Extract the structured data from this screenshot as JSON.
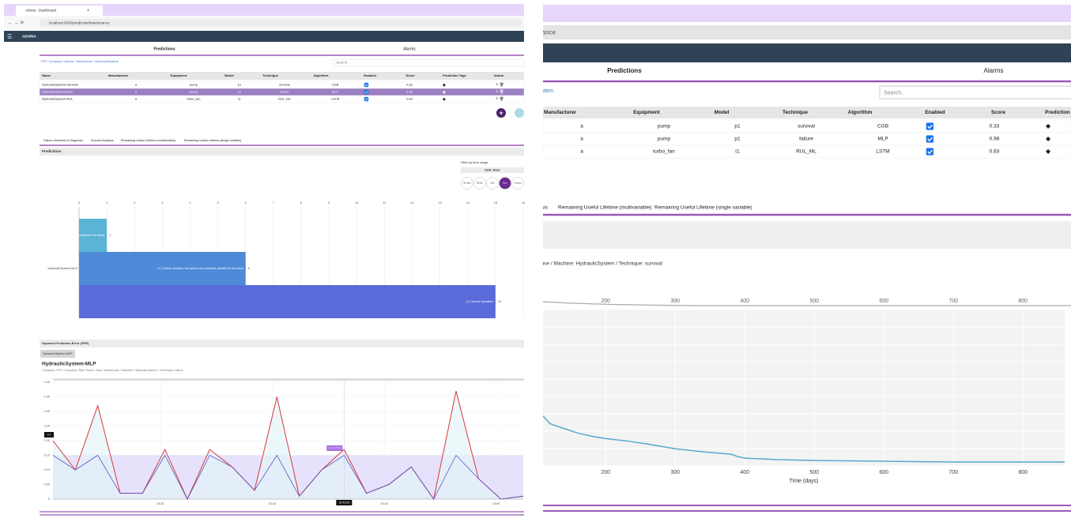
{
  "browser": {
    "tab_title": "Adoria - Dashboard",
    "url": "localhost:3000/predictive/Maintenance"
  },
  "app": {
    "brand": "ADORIA",
    "nav": [
      "Predictions",
      "Alarms"
    ],
    "breadcrumb": "PPC Company / Adoria / Warehouse / HydraulicSystem",
    "search_placeholder": "Search.."
  },
  "table": {
    "columns": [
      "Name",
      "Manufacturer",
      "Equipment",
      "Model",
      "Technique",
      "Algorithm",
      "Enabled",
      "Score",
      "Prediction Tags",
      "Action"
    ],
    "rows": [
      [
        "HydraulicSystem-Survival",
        "a",
        "pump",
        "p1",
        "survival",
        "CGB",
        true,
        "0.33"
      ],
      [
        "HydraulicSystem-MLP",
        "a",
        "pump",
        "p1",
        "failure",
        "MLP",
        true,
        "0.98"
      ],
      [
        "HydraulicSystem-RUL",
        "a",
        "turbo_fan",
        "t1",
        "RUL_ML",
        "LSTM",
        true,
        "0.63"
      ]
    ]
  },
  "subtabs": [
    "Failure Detection & Diagnosis",
    "Survival Analysis",
    "Remaining Useful Lifetime (multivariable)",
    "Remaining Useful Lifetime (single variable)"
  ],
  "predictions_panel": {
    "title": "Predictions",
    "filter_label": "Filter by time range:",
    "unit": "Unit: Hour",
    "ranges": [
      "30 days",
      "Month",
      "Day",
      "Hour",
      "Custom"
    ]
  },
  "spe_panel": {
    "title": "Squared Prediction Error (SPE)",
    "tab": "HydraulicSystem-MLP"
  },
  "chart_data": [
    {
      "type": "bar",
      "orientation": "horizontal",
      "categories": [
        "HydraulicSystem-MLP"
      ],
      "series": [
        {
          "name": "Healthy for the whole",
          "color": "#5ab4d6",
          "values": [
            1
          ]
        },
        {
          "name": "[ 1 ] Failure detected, the input to the predicted variable for the result",
          "color": "#4f8ad8",
          "values": [
            6
          ]
        },
        {
          "name": "[ 0 ] Normal operation",
          "color": "#5b6bd9",
          "values": [
            15
          ]
        }
      ],
      "xlim": [
        0,
        16
      ],
      "xticks": [
        0,
        1,
        2,
        3,
        4,
        5,
        6,
        7,
        8,
        9,
        10,
        11,
        12,
        13,
        14,
        15,
        16
      ],
      "grid": true
    },
    {
      "type": "line",
      "title": "HydraulicSystem-MLP",
      "subtitle": "Company: PPC Company / Site: Route / Area: Warehouse / Machine: HydraulicSystem / Technique: failure",
      "categories": [
        null,
        null,
        null,
        null,
        null,
        "15:35",
        null,
        null,
        null,
        null,
        "15:40",
        null,
        null,
        null,
        null,
        "15:45",
        null,
        null,
        null,
        null,
        "15:50",
        null
      ],
      "values": [
        0.2,
        0.1,
        0.32,
        0.02,
        0.02,
        0.17,
        0.0,
        0.17,
        0.11,
        0.03,
        0.35,
        0.01,
        0.1,
        0.17,
        0.02,
        0.05,
        0.11,
        0.0,
        0.37,
        0.07,
        0.0,
        0.01
      ],
      "color": "#d9383a",
      "threshold": 0.15,
      "threshold_color": "#e6e2fb",
      "below_color": "#5a55c8",
      "ylim": [
        0,
        0.4
      ],
      "yticks": [
        0,
        0.05,
        {
          "value": 0.1,
          "label": "0.10"
        },
        0.15,
        {
          "value": 0.2,
          "label": "0.20"
        },
        0.25,
        {
          "value": 0.3,
          "label": "0.30"
        },
        0.35,
        {
          "value": 0.4,
          "label": "0.40"
        }
      ],
      "grid": true,
      "cursor": {
        "x_label": "15:43:53",
        "value_label": "0.171718",
        "y_label": "0.2"
      }
    },
    {
      "type": "line",
      "subtitle": "Company: PPC Company / Site: Route / Area: Warehouse / Machine: HydraulicSystem / Technique: survival",
      "x": [
        110,
        120,
        140,
        160,
        180,
        200,
        230,
        260,
        300,
        340,
        380,
        390,
        400,
        450,
        500,
        600,
        700,
        800,
        860
      ],
      "values": [
        0.32,
        0.27,
        0.24,
        0.21,
        0.19,
        0.175,
        0.16,
        0.14,
        0.11,
        0.09,
        0.075,
        0.06,
        0.05,
        0.04,
        0.035,
        0.03,
        0.025,
        0.025,
        0.025
      ],
      "color": "#5aa7d0",
      "xlim": [
        110,
        860
      ],
      "xticks": [
        200,
        300,
        400,
        500,
        600,
        700,
        800
      ],
      "ylim": [
        0,
        1
      ],
      "xlabel": "Time (days)",
      "grid": true
    }
  ]
}
